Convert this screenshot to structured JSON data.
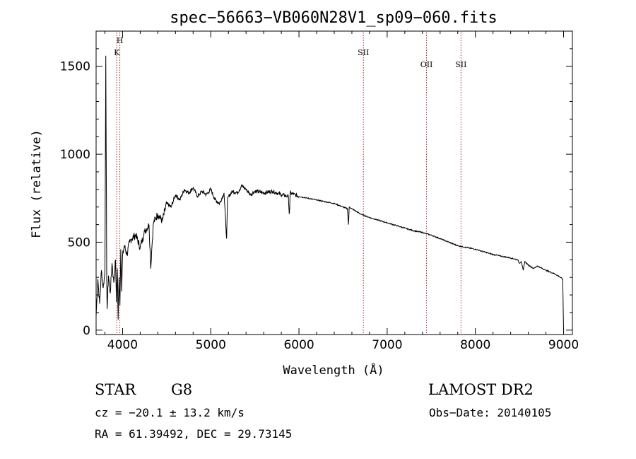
{
  "chart_data": {
    "type": "line",
    "title": "spec−56663−VB060N28V1_sp09−060.fits",
    "xlabel": "Wavelength (Å)",
    "ylabel": "Flux (relative)",
    "xlim": [
      3700,
      9100
    ],
    "ylim": [
      -25,
      1700
    ],
    "xticks": [
      4000,
      5000,
      6000,
      7000,
      8000,
      9000
    ],
    "xtick_labels": [
      "4000",
      "5000",
      "6000",
      "7000",
      "8000",
      "9000"
    ],
    "yticks": [
      0,
      500,
      1000,
      1500
    ],
    "ytick_labels": [
      "0",
      "500",
      "1000",
      "1500"
    ],
    "grid": false,
    "line_color": "#000000",
    "marker_color": "#a52a2a",
    "series": [
      {
        "x": [
          3700,
          3720,
          3740,
          3760,
          3780,
          3800,
          3810,
          3820,
          3825,
          3830,
          3840,
          3860,
          3880,
          3900,
          3920,
          3930,
          3940,
          3950,
          3960,
          3970,
          3980,
          3990,
          4000,
          4020,
          4050,
          4080,
          4100,
          4150,
          4200,
          4250,
          4300,
          4320,
          4330,
          4350,
          4400,
          4450,
          4500,
          4550,
          4600,
          4650,
          4700,
          4750,
          4800,
          4850,
          4900,
          4950,
          5000,
          5050,
          5100,
          5150,
          5170,
          5180,
          5190,
          5200,
          5250,
          5300,
          5350,
          5400,
          5450,
          5500,
          5600,
          5700,
          5800,
          5880,
          5890,
          5895,
          5900,
          6000,
          6100,
          6200,
          6300,
          6400,
          6500,
          6550,
          6560,
          6565,
          6570,
          6600,
          6700,
          6800,
          6900,
          7000,
          7100,
          7200,
          7300,
          7400,
          7500,
          7600,
          7700,
          7800,
          7900,
          8000,
          8100,
          8200,
          8300,
          8400,
          8480,
          8498,
          8520,
          8542,
          8560,
          8600,
          8662,
          8700,
          8800,
          8900,
          8950,
          8990,
          9000
        ],
        "y": [
          80,
          290,
          150,
          340,
          240,
          330,
          1560,
          300,
          120,
          180,
          310,
          210,
          380,
          270,
          400,
          160,
          350,
          60,
          300,
          140,
          460,
          220,
          420,
          480,
          430,
          500,
          520,
          540,
          470,
          560,
          600,
          350,
          450,
          610,
          660,
          620,
          720,
          700,
          770,
          740,
          800,
          780,
          810,
          760,
          790,
          770,
          800,
          740,
          720,
          780,
          600,
          520,
          740,
          760,
          790,
          780,
          820,
          800,
          770,
          790,
          780,
          790,
          770,
          760,
          660,
          700,
          780,
          760,
          750,
          740,
          730,
          720,
          700,
          690,
          600,
          640,
          700,
          690,
          660,
          640,
          625,
          610,
          595,
          580,
          565,
          555,
          540,
          520,
          500,
          480,
          470,
          460,
          445,
          430,
          420,
          410,
          400,
          380,
          390,
          340,
          390,
          370,
          350,
          365,
          340,
          320,
          305,
          290,
          0
        ]
      }
    ],
    "line_markers": [
      {
        "label": "H",
        "x": 3969
      },
      {
        "label": "K",
        "x": 3934
      },
      {
        "label": "SII",
        "x": 6730
      },
      {
        "label": "OII",
        "x": 7446
      },
      {
        "label": "SII",
        "x": 7837
      }
    ]
  },
  "footer": {
    "class_label": "STAR",
    "subclass_label": "G8",
    "survey": "LAMOST DR2",
    "cz": "cz = −20.1 ± 13.2 km/s",
    "obs_date": "Obs−Date: 20140105",
    "coords": "RA =  61.39492, DEC =  29.73145"
  }
}
